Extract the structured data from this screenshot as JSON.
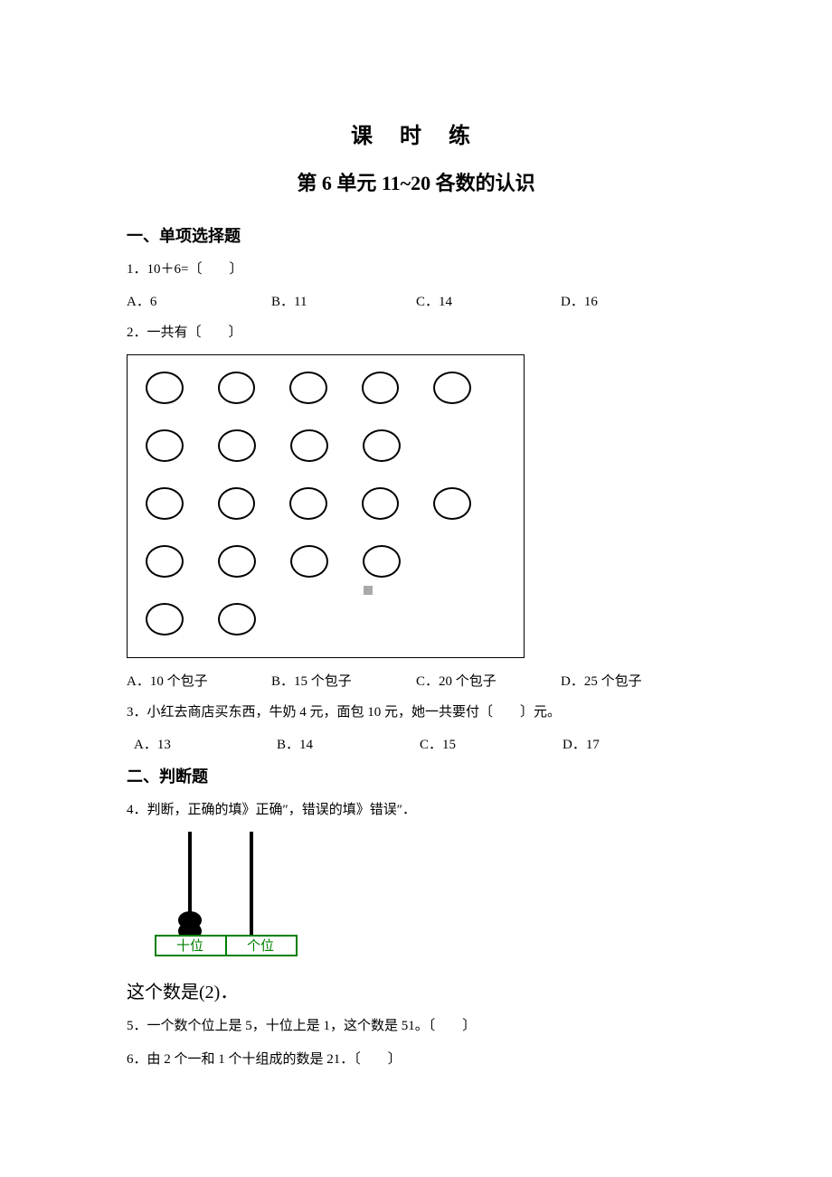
{
  "titles": {
    "main": "课 时 练",
    "sub": "第 6 单元 11~20 各数的认识"
  },
  "sections": {
    "s1": "一、单项选择题",
    "s2": "二、判断题"
  },
  "q1": {
    "text": "1．10＋6=〔　　〕",
    "optA": "A．6",
    "optB": "B．11",
    "optC": "C．14",
    "optD": "D．16"
  },
  "q2": {
    "text": "2．一共有〔　　〕",
    "optA": "A．10 个包子",
    "optB": "B．15 个包子",
    "optC": "C．20 个包子",
    "optD": "D．25 个包子",
    "rows": [
      5,
      4,
      5,
      4,
      2
    ]
  },
  "q3": {
    "text": "3．小红去商店买东西，牛奶 4 元，面包 10 元，她一共要付〔　　〕元。",
    "optA": "A．13",
    "optB": "B．14",
    "optC": "C．15",
    "optD": "D．17"
  },
  "q4": {
    "text": "4．判断，正确的填》正确″，错误的填》错误″．",
    "abacus": {
      "tens_label": "十位",
      "ones_label": "个位",
      "answer_text": "这个数是(2)．"
    }
  },
  "q5": {
    "text": "5．一个数个位上是 5，十位上是 1，这个数是 51。〔　　〕"
  },
  "q6": {
    "text": "6．由 2 个一和 1 个十组成的数是 21．〔　　〕"
  },
  "colors": {
    "black": "#000000",
    "white": "#ffffff",
    "green": "#008000"
  }
}
